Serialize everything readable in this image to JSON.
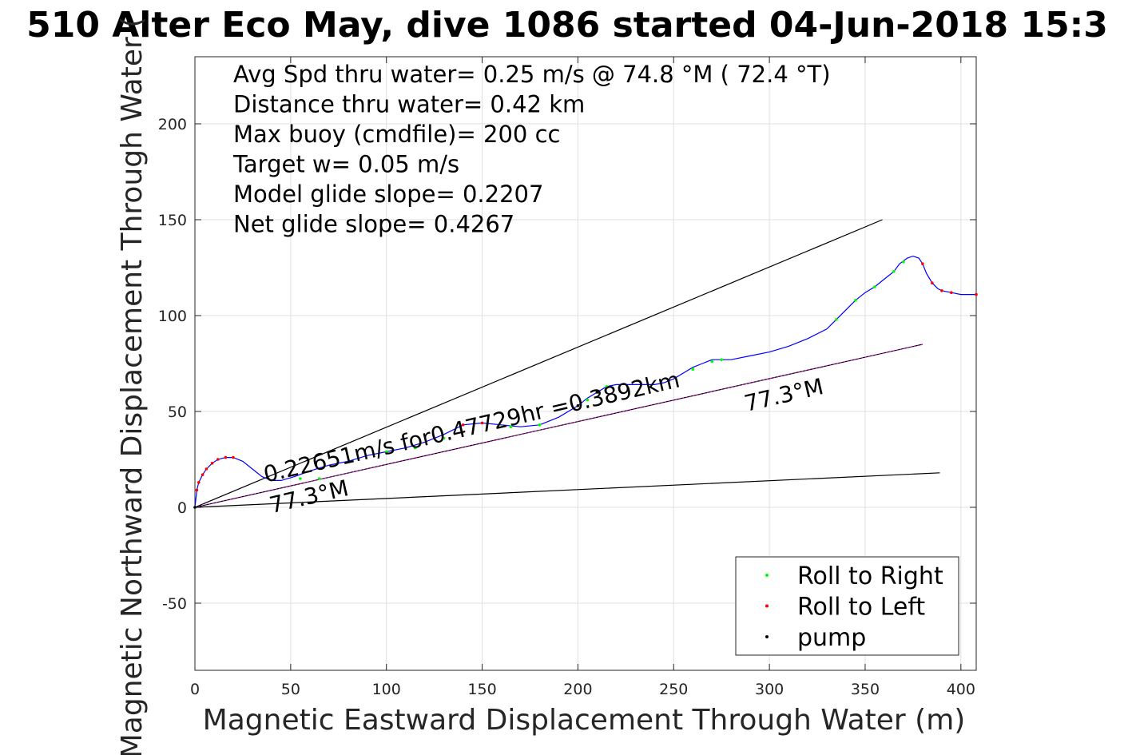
{
  "chart_data": {
    "type": "line",
    "title": "510 Alter Eco May, dive 1086 started 04-Jun-2018 15:3",
    "xlabel": "Magnetic Eastward Displacement Through Water (m)",
    "ylabel": "Magnetic Northward Displacement Through Water (",
    "xlim": [
      0,
      408
    ],
    "ylim": [
      -85,
      235
    ],
    "xticks": [
      0,
      50,
      100,
      150,
      200,
      250,
      300,
      350,
      400
    ],
    "yticks": [
      -50,
      0,
      50,
      100,
      150,
      200
    ],
    "grid": true,
    "legend_position": "bottom-right",
    "info_lines": [
      "Avg Spd thru water=  0.25 m/s @  74.8 °M ( 72.4 °T)",
      "Distance thru water=  0.42 km",
      "Max buoy (cmdfile)= 200 cc",
      "Target w= 0.05 m/s",
      "Model glide slope= 0.2207",
      "Net glide slope= 0.4267"
    ],
    "annotations": [
      {
        "text": "0.22651m/s for0.47729hr =0.3892km",
        "x": 37,
        "y": 13,
        "angle": 13
      },
      {
        "text": "77.3°M",
        "x": 40,
        "y": -3,
        "angle": 13
      },
      {
        "text": "77.3°M",
        "x": 288,
        "y": 50,
        "angle": 13
      }
    ],
    "reference_lines": [
      {
        "name": "upper",
        "x": [
          0,
          359
        ],
        "y": [
          0,
          150
        ],
        "color": "#000000"
      },
      {
        "name": "lower",
        "x": [
          0,
          389
        ],
        "y": [
          0,
          18
        ],
        "color": "#000000"
      },
      {
        "name": "heading",
        "x": [
          0,
          380
        ],
        "y": [
          0,
          85
        ],
        "color": "#000000"
      }
    ],
    "series": [
      {
        "name": "track",
        "color": "#0000ff",
        "x": [
          0,
          1,
          2,
          4,
          6,
          9,
          12,
          16,
          20,
          25,
          30,
          35,
          40,
          45,
          52,
          60,
          70,
          80,
          90,
          100,
          110,
          120,
          130,
          140,
          150,
          160,
          170,
          180,
          190,
          200,
          205,
          210,
          215,
          220,
          225,
          230,
          235,
          240,
          245,
          250,
          255,
          260,
          265,
          270,
          275,
          280,
          290,
          300,
          310,
          320,
          330,
          335,
          340,
          345,
          350,
          355,
          360,
          365,
          368,
          372,
          375,
          378,
          380,
          382,
          385,
          388,
          390,
          395,
          400,
          408
        ],
        "y": [
          0,
          9,
          13,
          17,
          20,
          23,
          25,
          26,
          26,
          24,
          20,
          16,
          14,
          14,
          16,
          19,
          22,
          24,
          27,
          29,
          31,
          34,
          38,
          43,
          44,
          43,
          42,
          43,
          47,
          53,
          57,
          60,
          63,
          64,
          64,
          64,
          64,
          64,
          65,
          67,
          70,
          73,
          75,
          77,
          77,
          77,
          79,
          81,
          84,
          88,
          93,
          98,
          103,
          108,
          112,
          115,
          119,
          123,
          127,
          130,
          131,
          130,
          127,
          122,
          117,
          114,
          113,
          112,
          111,
          111
        ]
      },
      {
        "name": "Roll to Right",
        "color": "#00ff00",
        "marker": "dot",
        "x": [
          0,
          55,
          65,
          100,
          115,
          130,
          165,
          180,
          205,
          215,
          260,
          270,
          275,
          335,
          345,
          355,
          365,
          370
        ],
        "y": [
          0,
          15,
          15,
          29,
          31,
          36,
          42,
          43,
          56,
          63,
          72,
          76,
          77,
          98,
          108,
          115,
          123,
          128
        ]
      },
      {
        "name": "Roll to Left",
        "color": "#ff0000",
        "marker": "dot",
        "x": [
          1,
          2,
          4,
          6,
          9,
          12,
          16,
          20,
          140,
          150,
          380,
          385,
          390,
          395,
          408
        ],
        "y": [
          9,
          13,
          17,
          20,
          23,
          25,
          26,
          26,
          43,
          44,
          127,
          117,
          113,
          112,
          111
        ]
      },
      {
        "name": "pump",
        "color": "#000000",
        "marker": "dot",
        "x": [
          0,
          200,
          210
        ],
        "y": [
          0,
          53,
          60
        ]
      }
    ]
  }
}
